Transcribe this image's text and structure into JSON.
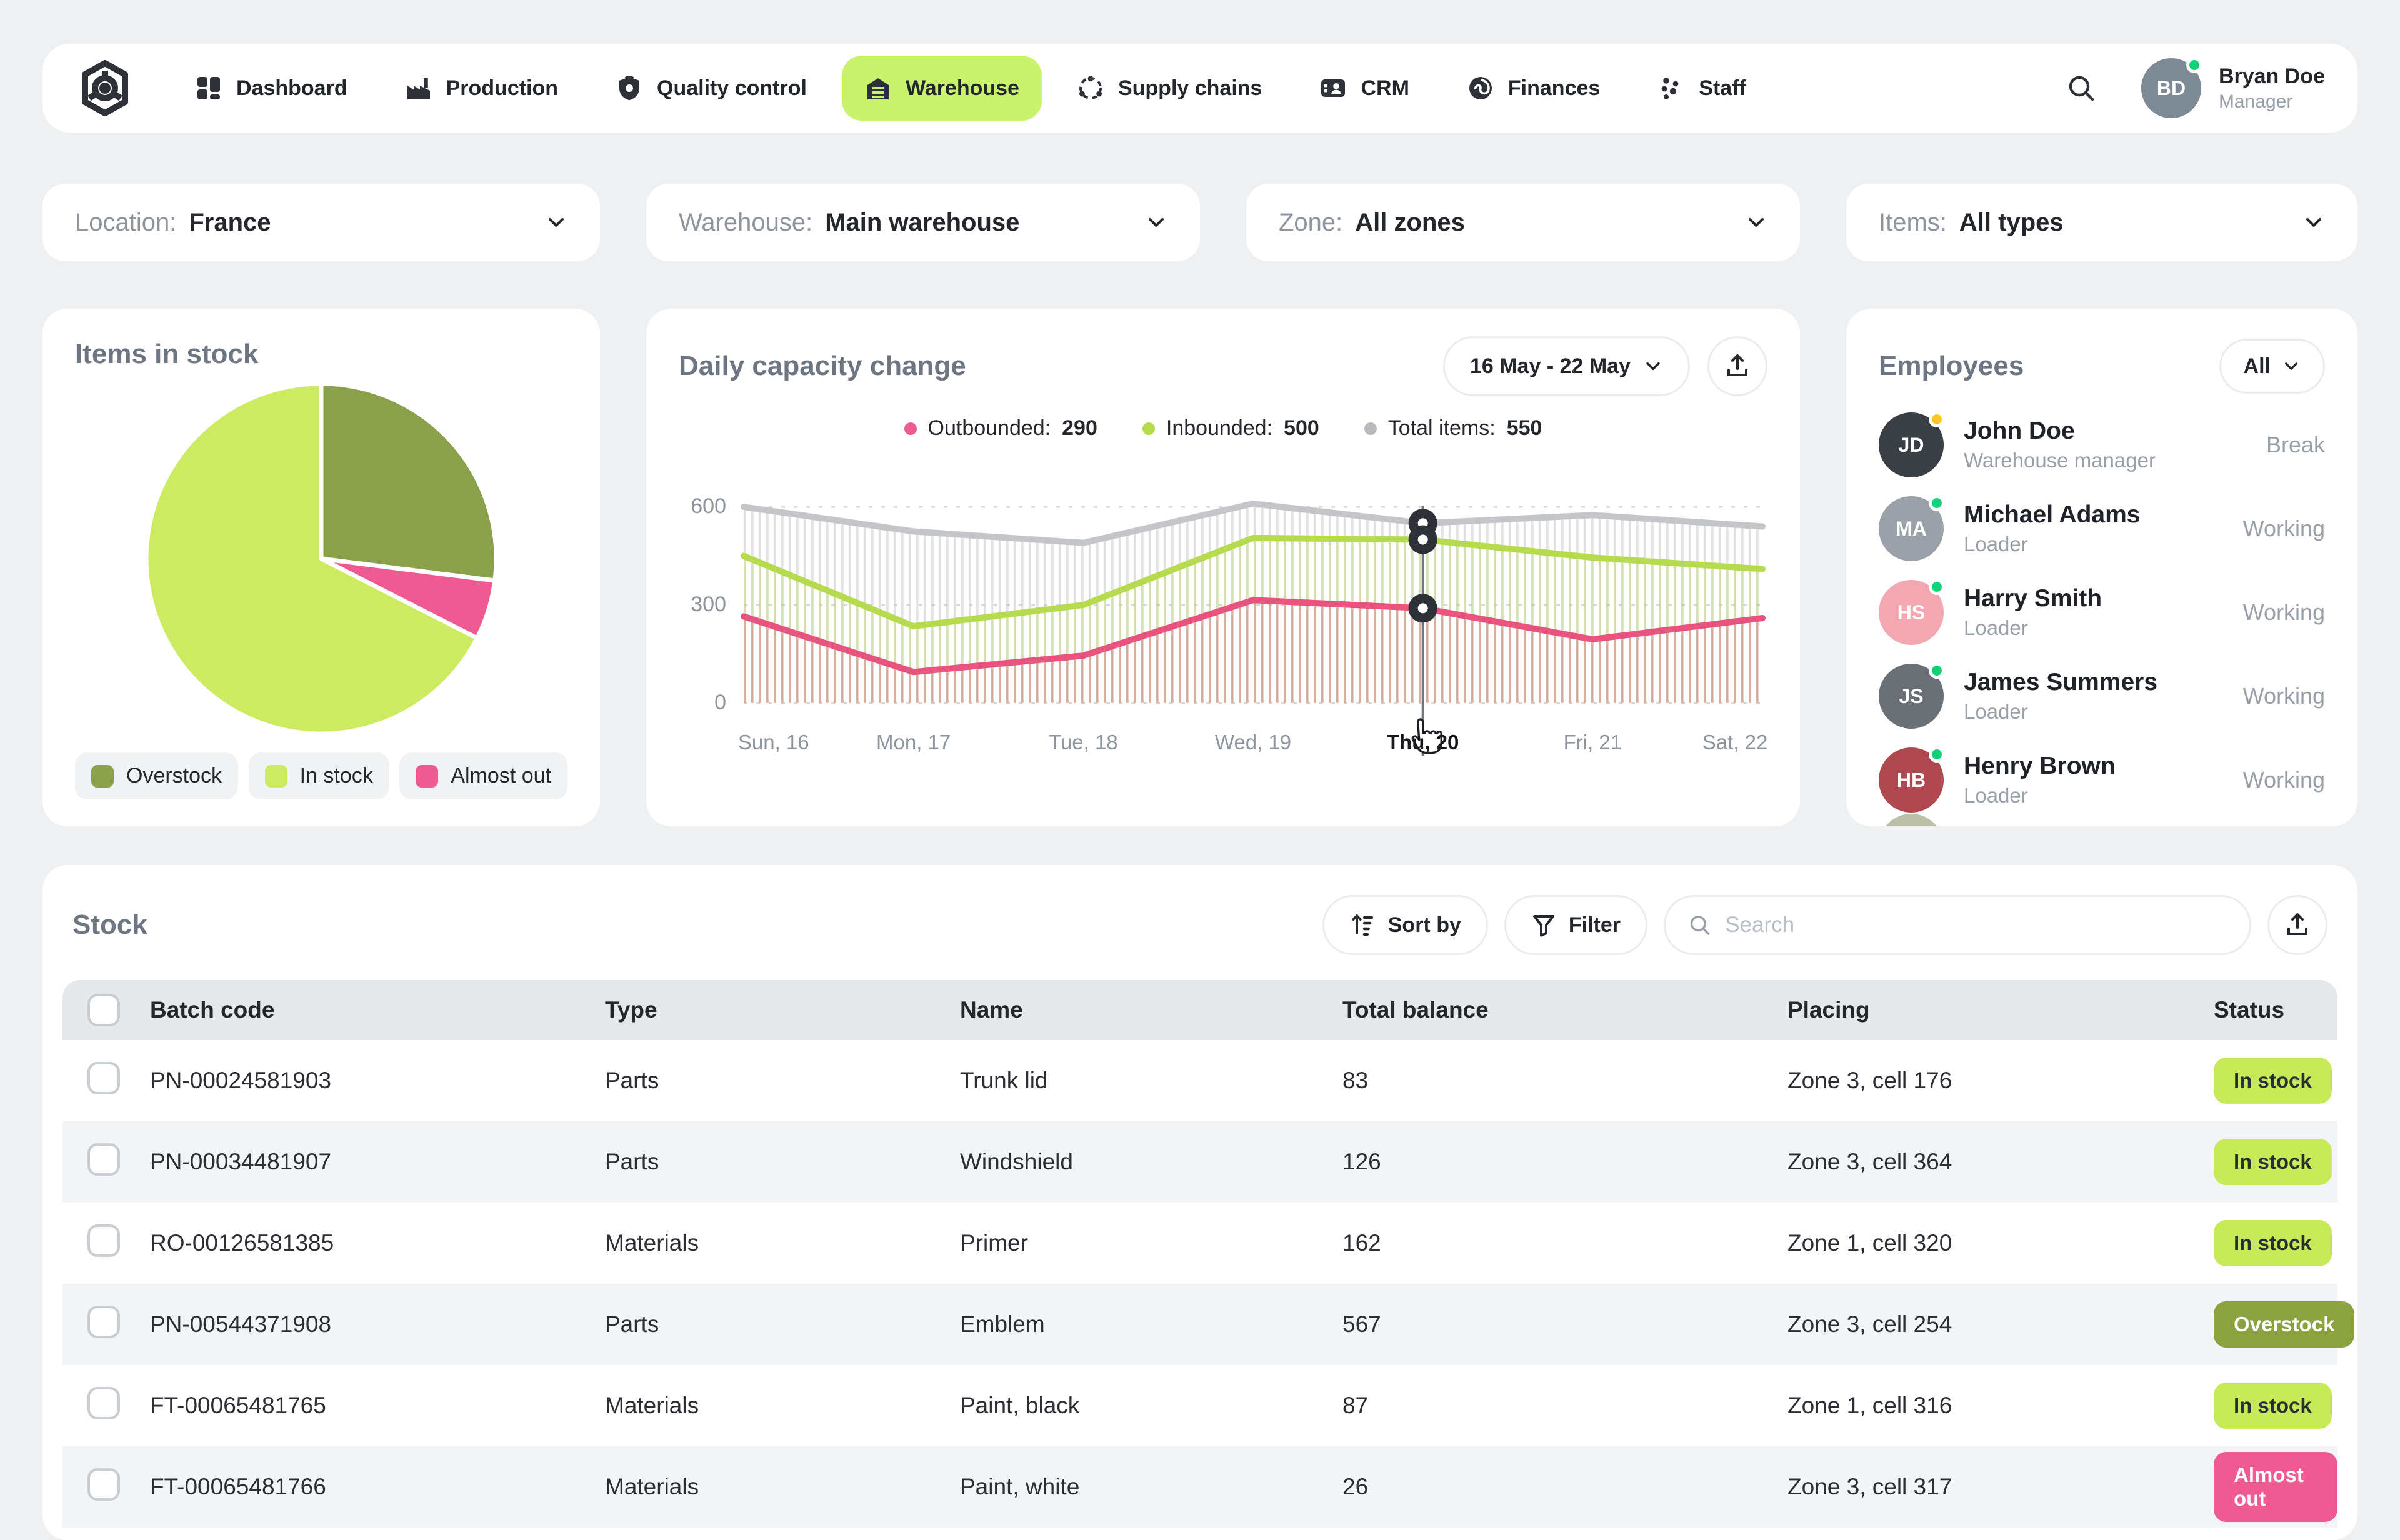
{
  "nav": {
    "items": [
      {
        "label": "Dashboard"
      },
      {
        "label": "Production"
      },
      {
        "label": "Quality control"
      },
      {
        "label": "Warehouse"
      },
      {
        "label": "Supply chains"
      },
      {
        "label": "CRM"
      },
      {
        "label": "Finances"
      },
      {
        "label": "Staff"
      }
    ],
    "active": "Warehouse",
    "user": {
      "name": "Bryan Doe",
      "role": "Manager",
      "initials": "BD",
      "avatar_color": "#7d8a96",
      "status": "online"
    }
  },
  "filters": [
    {
      "label": "Location:",
      "value": "France"
    },
    {
      "label": "Warehouse:",
      "value": "Main warehouse"
    },
    {
      "label": "Zone:",
      "value": "All zones"
    },
    {
      "label": "Items:",
      "value": "All types"
    }
  ],
  "stock_pie": {
    "title": "Items in stock",
    "legend": [
      {
        "label": "Overstock",
        "color": "#8ba04a"
      },
      {
        "label": "In stock",
        "color": "#cdeb60"
      },
      {
        "label": "Almost out",
        "color": "#ee5a92"
      }
    ]
  },
  "capacity": {
    "title": "Daily capacity change",
    "range_label": "16 May - 22 May",
    "legend": [
      {
        "label": "Outbounded:",
        "value": "290",
        "color": "#ee5a92"
      },
      {
        "label": "Inbounded:",
        "value": "500",
        "color": "#b6db4f"
      },
      {
        "label": "Total items:",
        "value": "550",
        "color": "#b9babd"
      }
    ]
  },
  "employees": {
    "title": "Employees",
    "filter_label": "All",
    "list": [
      {
        "name": "John Doe",
        "role": "Warehouse manager",
        "status": "Break",
        "dot_class": "break",
        "initials": "JD",
        "avatar_color": "#3a3f46"
      },
      {
        "name": "Michael Adams",
        "role": "Loader",
        "status": "Working",
        "dot_class": "online",
        "initials": "MA",
        "avatar_color": "#9aa1a8"
      },
      {
        "name": "Harry Smith",
        "role": "Loader",
        "status": "Working",
        "dot_class": "online",
        "initials": "HS",
        "avatar_color": "#f2a7b1"
      },
      {
        "name": "James Summers",
        "role": "Loader",
        "status": "Working",
        "dot_class": "online",
        "initials": "JS",
        "avatar_color": "#6b7077"
      },
      {
        "name": "Henry Brown",
        "role": "Loader",
        "status": "Working",
        "dot_class": "online",
        "initials": "HB",
        "avatar_color": "#b0484f"
      }
    ]
  },
  "stock_table": {
    "title": "Stock",
    "sort_label": "Sort by",
    "filter_label": "Filter",
    "search_placeholder": "Search",
    "columns": [
      "Batch code",
      "Type",
      "Name",
      "Total balance",
      "Placing",
      "Status"
    ],
    "rows": [
      {
        "batch": "PN-00024581903",
        "type": "Parts",
        "name": "Trunk lid",
        "balance": "83",
        "placing": "Zone 3, cell 176",
        "status": "In stock",
        "status_class": "in-stock"
      },
      {
        "batch": "PN-00034481907",
        "type": "Parts",
        "name": "Windshield",
        "balance": "126",
        "placing": "Zone 3, cell 364",
        "status": "In stock",
        "status_class": "in-stock"
      },
      {
        "batch": "RO-00126581385",
        "type": "Materials",
        "name": "Primer",
        "balance": "162",
        "placing": "Zone 1, cell 320",
        "status": "In stock",
        "status_class": "in-stock"
      },
      {
        "batch": "PN-00544371908",
        "type": "Parts",
        "name": "Emblem",
        "balance": "567",
        "placing": "Zone 3, cell 254",
        "status": "Overstock",
        "status_class": "overstock"
      },
      {
        "batch": "FT-00065481765",
        "type": "Materials",
        "name": "Paint, black",
        "balance": "87",
        "placing": "Zone 1, cell 316",
        "status": "In stock",
        "status_class": "in-stock"
      },
      {
        "batch": "FT-00065481766",
        "type": "Materials",
        "name": "Paint, white",
        "balance": "26",
        "placing": "Zone 3, cell 317",
        "status": "Almost out",
        "status_class": "almost-out"
      }
    ]
  },
  "chart_data": [
    {
      "type": "pie",
      "title": "Items in stock",
      "slices": [
        {
          "label": "Overstock",
          "pct": 27,
          "color": "#8ba04a"
        },
        {
          "label": "Almost out",
          "pct": 5.5,
          "color": "#ee5a92"
        },
        {
          "label": "In stock",
          "pct": 67.5,
          "color": "#cdeb60"
        }
      ],
      "legend_position": "bottom"
    },
    {
      "type": "line",
      "title": "Daily capacity change",
      "categories": [
        "Sun, 16",
        "Mon, 17",
        "Tue, 18",
        "Wed, 19",
        "Thu, 20",
        "Fri, 21",
        "Sat, 22"
      ],
      "yticks": [
        0,
        300,
        600
      ],
      "ylim": [
        0,
        650
      ],
      "grid": "dashed-horizontal",
      "series": [
        {
          "name": "Total items",
          "color": "#c5c6c9",
          "values": [
            600,
            525,
            490,
            610,
            550,
            575,
            540
          ]
        },
        {
          "name": "Inbounded",
          "color": "#b6db4f",
          "values": [
            450,
            235,
            300,
            505,
            500,
            445,
            410
          ]
        },
        {
          "name": "Outbounded",
          "color": "#e9537f",
          "values": [
            265,
            95,
            145,
            315,
            290,
            195,
            260
          ]
        }
      ],
      "hover_index": 4,
      "highlighted_category": "Thu, 20",
      "legend_values": {
        "Outbounded": 290,
        "Inbounded": 500,
        "Total items": 550
      }
    }
  ]
}
